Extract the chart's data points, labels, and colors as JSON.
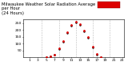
{
  "title_line1": "Milwaukee Weather Solar Radiation Average",
  "title_line2": "per Hour",
  "title_line3": "(24 Hours)",
  "hours": [
    0,
    1,
    2,
    3,
    4,
    5,
    6,
    7,
    8,
    9,
    10,
    11,
    12,
    13,
    14,
    15,
    16,
    17,
    18,
    19,
    20,
    21,
    22,
    23
  ],
  "red_values": [
    0,
    0,
    0,
    0,
    0,
    3,
    8,
    22,
    65,
    120,
    185,
    238,
    260,
    242,
    195,
    148,
    80,
    25,
    4,
    0,
    0,
    0,
    0,
    0
  ],
  "black_values": [
    0,
    0,
    0,
    0,
    0,
    2,
    6,
    18,
    60,
    115,
    180,
    232,
    255,
    237,
    190,
    143,
    75,
    22,
    3,
    0,
    0,
    0,
    0,
    0
  ],
  "red_color": "#dd0000",
  "black_color": "#000000",
  "bg_color": "#ffffff",
  "plot_bg": "#ffffff",
  "grid_color": "#bbbbbb",
  "grid_positions": [
    4,
    8,
    12,
    16,
    20
  ],
  "ylim": [
    0,
    275
  ],
  "xlim": [
    -0.5,
    23.5
  ],
  "xticks": [
    1,
    3,
    5,
    7,
    9,
    11,
    13,
    15,
    17,
    19,
    21,
    23
  ],
  "xtick_labels": [
    "1",
    "3",
    "5",
    "7",
    "9",
    "11",
    "13",
    "15",
    "17",
    "19",
    "21",
    "23"
  ],
  "yticks": [
    50,
    100,
    150,
    200,
    250
  ],
  "ytick_labels": [
    "50",
    "100",
    "150",
    "200",
    "250"
  ],
  "legend_box_color": "#dd0000",
  "title_fontsize": 3.8,
  "tick_fontsize": 3.2,
  "marker_size_red": 2.0,
  "marker_size_black": 1.5
}
